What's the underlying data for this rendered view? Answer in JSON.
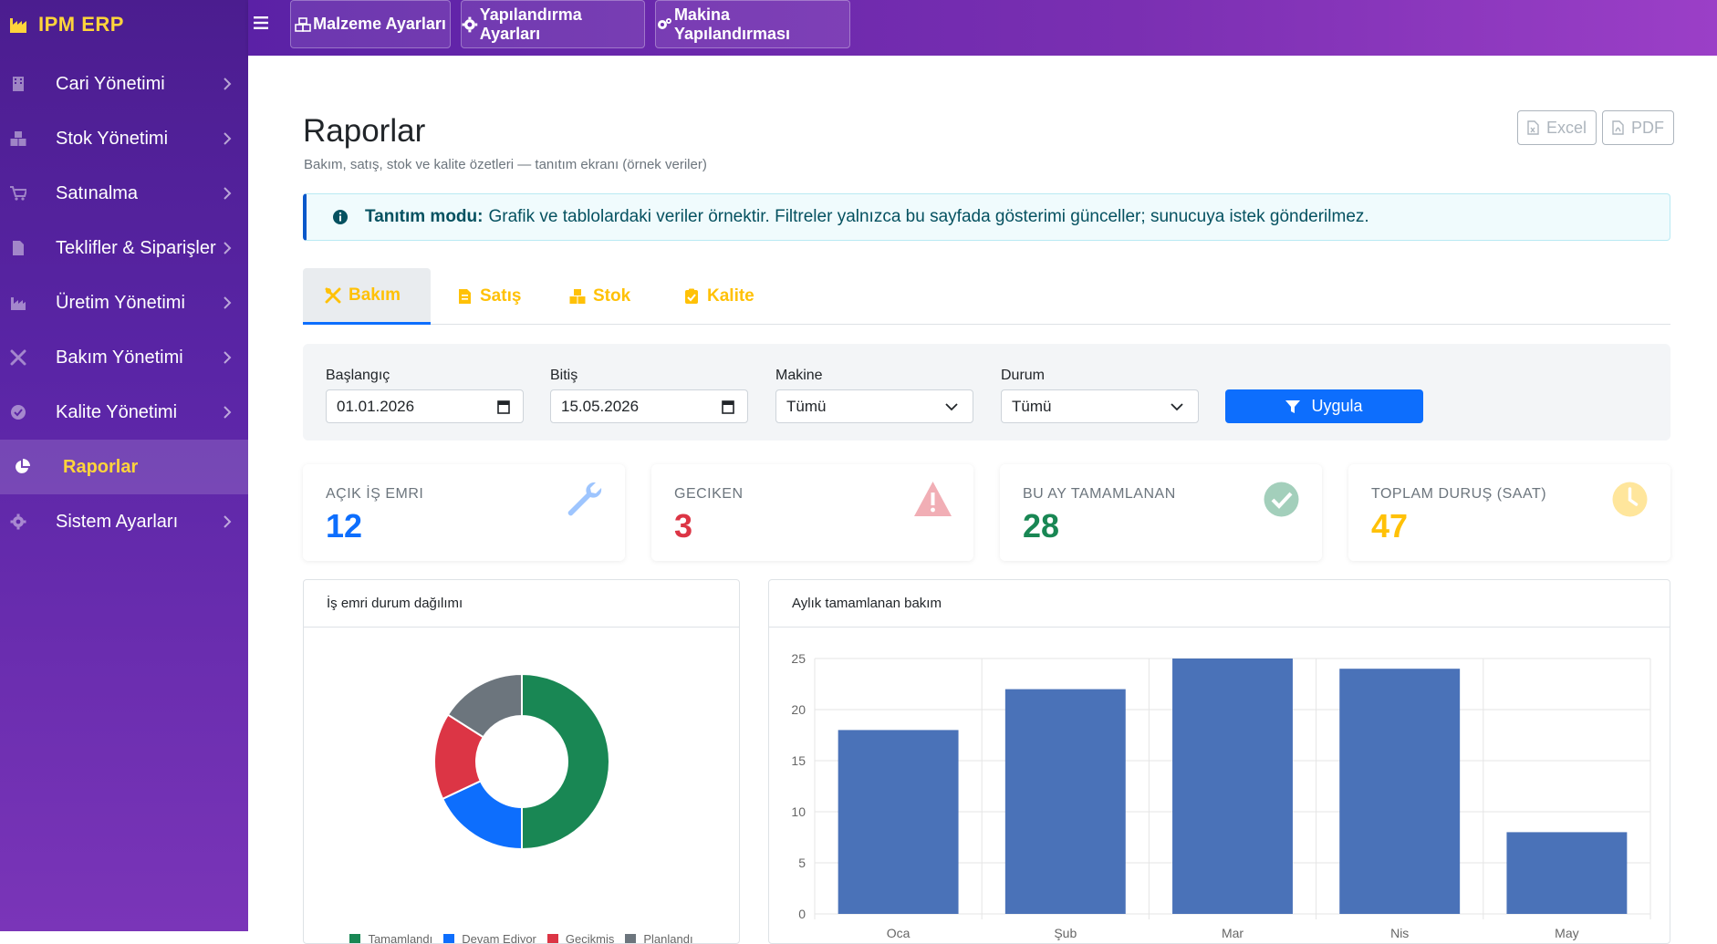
{
  "app": {
    "brand": "IPM ERP"
  },
  "topbar": {
    "buttons": [
      {
        "label": "Malzeme Ayarları",
        "icon": "boxes-icon"
      },
      {
        "label": "Yapılandırma Ayarları",
        "icon": "gear-icon"
      },
      {
        "label": "Makina Yapılandırması",
        "icon": "gears-icon"
      }
    ]
  },
  "sidebar": {
    "items": [
      {
        "label": "Cari Yönetimi",
        "icon": "building-icon"
      },
      {
        "label": "Stok Yönetimi",
        "icon": "boxes-icon"
      },
      {
        "label": "Satınalma",
        "icon": "cart-icon"
      },
      {
        "label": "Teklifler & Siparişler",
        "icon": "document-icon"
      },
      {
        "label": "Üretim Yönetimi",
        "icon": "industry-icon"
      },
      {
        "label": "Bakım Yönetimi",
        "icon": "tools-icon"
      },
      {
        "label": "Kalite Yönetimi",
        "icon": "check-circle-icon"
      },
      {
        "label": "Raporlar",
        "icon": "pie-chart-icon",
        "active": true
      },
      {
        "label": "Sistem Ayarları",
        "icon": "gear-icon"
      }
    ]
  },
  "page": {
    "title": "Raporlar",
    "subtitle": "Bakım, satış, stok ve kalite özetleri — tanıtım ekranı (örnek veriler)",
    "export": {
      "excel": "Excel",
      "pdf": "PDF"
    },
    "alert": {
      "strong": "Tanıtım modu:",
      "text": "Grafik ve tablolardaki veriler örnektir. Filtreler yalnızca bu sayfada gösterimi günceller; sunucuya istek gönderilmez."
    },
    "tabs": [
      {
        "label": "Bakım",
        "icon": "tools-icon",
        "active": true
      },
      {
        "label": "Satış",
        "icon": "invoice-icon"
      },
      {
        "label": "Stok",
        "icon": "boxes-icon"
      },
      {
        "label": "Kalite",
        "icon": "clipboard-check-icon"
      }
    ],
    "filters": {
      "start": {
        "label": "Başlangıç",
        "value": "01.01.2026"
      },
      "end": {
        "label": "Bitiş",
        "value": "15.05.2026"
      },
      "machine": {
        "label": "Makine",
        "value": "Tümü"
      },
      "status": {
        "label": "Durum",
        "value": "Tümü"
      },
      "apply": "Uygula"
    },
    "kpis": [
      {
        "label": "AÇIK İŞ EMRI",
        "value": "12",
        "color": "#0d6efd",
        "icon": "wrench-icon"
      },
      {
        "label": "GECIKEN",
        "value": "3",
        "color": "#dc3545",
        "icon": "warning-icon"
      },
      {
        "label": "BU AY TAMAMLANAN",
        "value": "28",
        "color": "#198754",
        "icon": "check-circle-icon"
      },
      {
        "label": "TOPLAM DURUŞ (SAAT)",
        "value": "47",
        "color": "#ffc107",
        "icon": "clock-icon"
      }
    ],
    "charts": {
      "donut_title": "İş emri durum dağılımı",
      "bar_title": "Aylık tamamlanan bakım"
    }
  },
  "chart_data": [
    {
      "type": "pie",
      "title": "İş emri durum dağılımı",
      "categories": [
        "Tamamlandı",
        "Devam Ediyor",
        "Gecikmiş",
        "Planlandı"
      ],
      "values": [
        50,
        18,
        16,
        16
      ],
      "colors": [
        "#198754",
        "#0d6efd",
        "#dc3545",
        "#6c757d"
      ],
      "legend": "bottom"
    },
    {
      "type": "bar",
      "title": "Aylık tamamlanan bakım",
      "categories": [
        "Oca",
        "Şub",
        "Mar",
        "Nis",
        "May"
      ],
      "values": [
        18,
        22,
        25,
        24,
        8
      ],
      "ylim": [
        0,
        25
      ],
      "yticks": [
        0,
        5,
        10,
        15,
        20,
        25
      ],
      "color": "#4a72b8",
      "grid": true
    }
  ]
}
